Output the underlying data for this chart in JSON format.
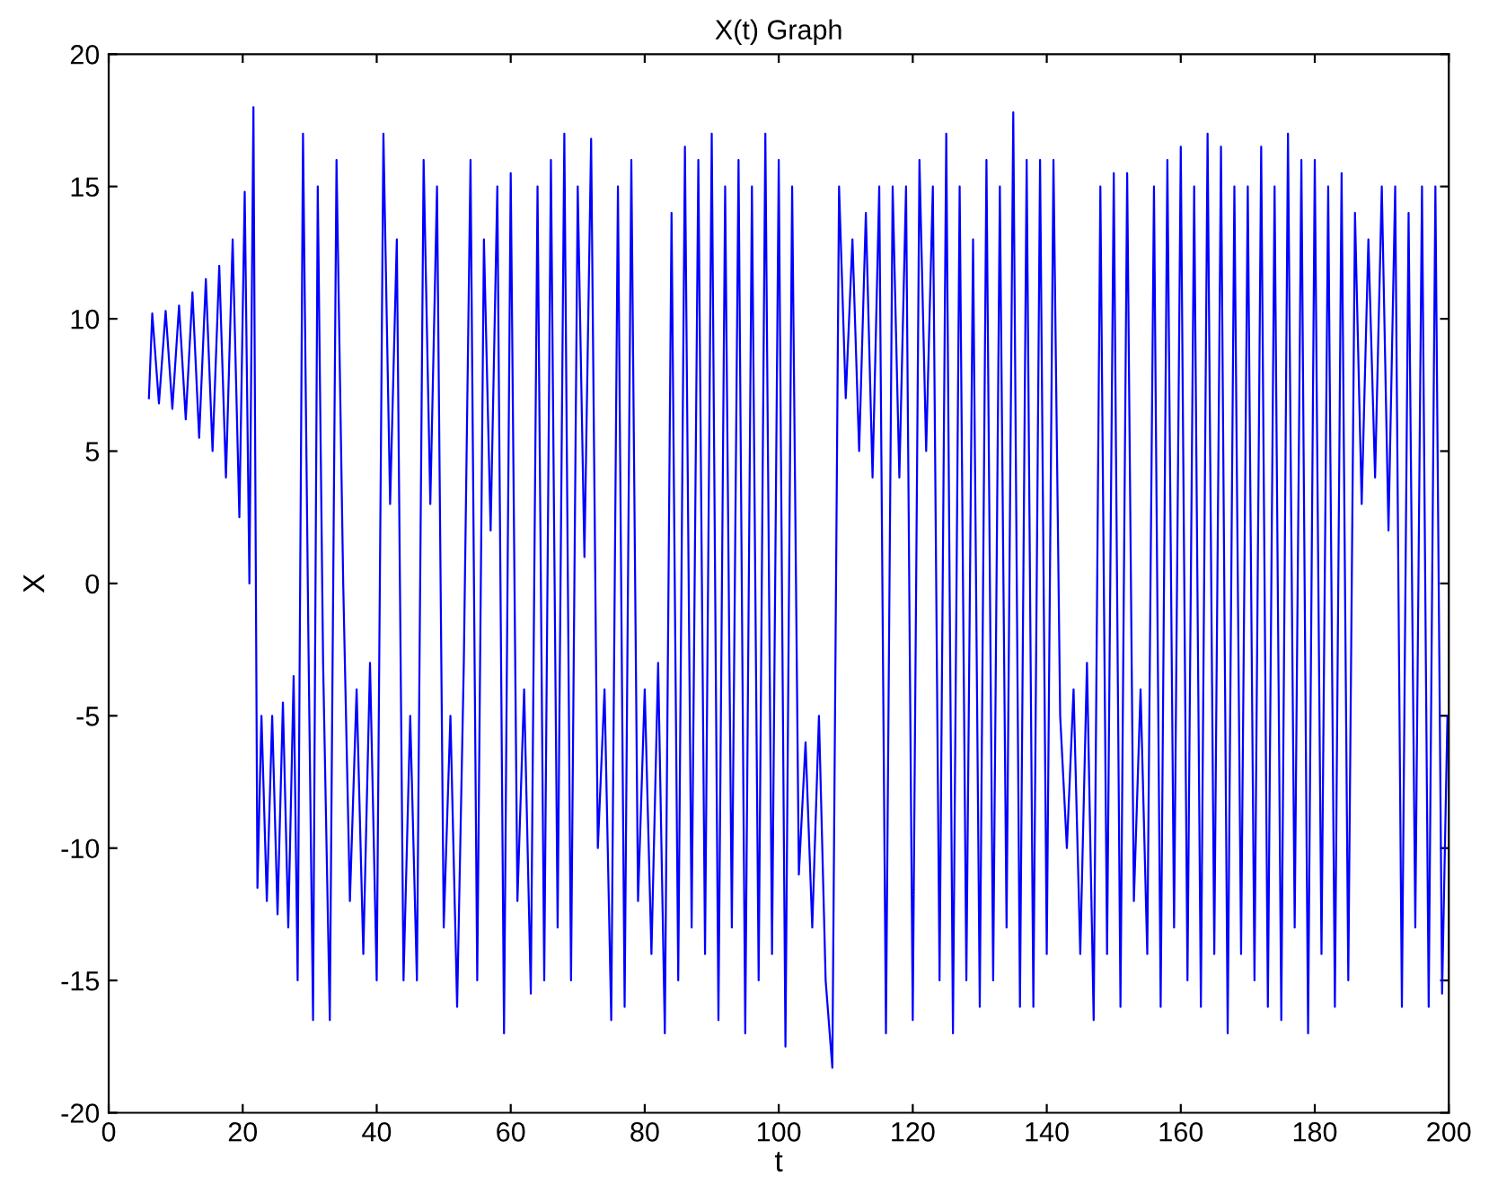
{
  "chart_data": {
    "type": "line",
    "title": "X(t) Graph",
    "xlabel": "t",
    "ylabel": "X",
    "x": [
      6,
      6.5,
      7.5,
      8.5,
      9.5,
      10.5,
      11.5,
      12.5,
      13.5,
      14.5,
      15.5,
      16.5,
      17.5,
      18.5,
      19.5,
      20.3,
      21,
      21.6,
      22.2,
      22.8,
      23.6,
      24.4,
      25.2,
      26,
      26.8,
      27.6,
      28.2,
      29,
      29.8,
      30.5,
      31.2,
      32,
      33,
      34,
      35,
      36,
      37,
      38,
      39,
      40,
      41,
      42,
      43,
      44,
      45,
      46,
      47,
      48,
      49,
      50,
      51,
      52,
      53,
      54,
      55,
      56,
      57,
      58,
      59,
      60,
      61,
      62,
      63,
      64,
      65,
      66,
      67,
      68,
      69,
      70,
      71,
      72,
      73,
      74,
      75,
      76,
      77,
      78,
      79,
      80,
      81,
      82,
      83,
      84,
      85,
      86,
      87,
      88,
      89,
      90,
      91,
      92,
      93,
      94,
      95,
      96,
      97,
      98,
      99,
      100,
      101,
      102,
      103,
      104,
      105,
      106,
      107,
      108,
      109,
      110,
      111,
      112,
      113,
      114,
      115,
      116,
      117,
      118,
      119,
      120,
      121,
      122,
      123,
      124,
      125,
      126,
      127,
      128,
      129,
      130,
      131,
      132,
      133,
      134,
      135,
      136,
      137,
      138,
      139,
      140,
      141,
      142,
      143,
      144,
      145,
      146,
      147,
      148,
      149,
      150,
      151,
      152,
      153,
      154,
      155,
      156,
      157,
      158,
      159,
      160,
      161,
      162,
      163,
      164,
      165,
      166,
      167,
      168,
      169,
      170,
      171,
      172,
      173,
      174,
      175,
      176,
      177,
      178,
      179,
      180,
      181,
      182,
      183,
      184,
      185,
      186,
      187,
      188,
      189,
      190,
      191,
      192,
      193,
      194,
      195,
      196,
      197,
      198,
      199,
      199.8
    ],
    "series": [
      {
        "color": "#0000ff",
        "values": [
          7,
          10.2,
          6.8,
          10.3,
          6.6,
          10.5,
          6.2,
          11,
          5.5,
          11.5,
          5,
          12,
          4,
          13,
          2.5,
          14.8,
          0,
          18,
          -11.5,
          -5,
          -12,
          -5,
          -12.5,
          -4.5,
          -13,
          -3.5,
          -15,
          17,
          -2,
          -16.5,
          15,
          -3,
          -16.5,
          16,
          0,
          -12,
          -4,
          -14,
          -3,
          -15,
          17,
          3,
          13,
          -15,
          -5,
          -15,
          16,
          3,
          15,
          -13,
          -5,
          -16,
          -3,
          16,
          -15,
          13,
          2,
          15,
          -17,
          15.5,
          -12,
          -4,
          -15.5,
          15,
          -15,
          16,
          -13,
          17,
          -15,
          15,
          1,
          16.8,
          -10,
          -4,
          -16.5,
          15,
          -16,
          16,
          -12,
          -4,
          -14,
          -3,
          -17,
          14,
          -15,
          16.5,
          -13,
          16,
          -14,
          17,
          -16.5,
          15,
          -13,
          16,
          -17,
          15,
          -15,
          17,
          -14,
          16,
          -17.5,
          15,
          -11,
          -6,
          -13,
          -5,
          -15,
          -18.3,
          15,
          7,
          13,
          5,
          14,
          4,
          15,
          -17,
          15,
          4,
          15,
          -16.5,
          16,
          5,
          15,
          -15,
          17,
          -17,
          15,
          -15,
          13,
          -16,
          16,
          -15,
          15,
          -13,
          17.8,
          -16,
          16,
          -16,
          16,
          -14,
          16,
          -5,
          -10,
          -4,
          -14,
          -3,
          -16.5,
          15,
          -14,
          15.5,
          -16,
          15.5,
          -12,
          -4,
          -14,
          15,
          -16,
          16,
          -13,
          16.5,
          -15,
          15,
          -16,
          17,
          -14,
          16.5,
          -17,
          15,
          -14,
          15,
          -15,
          16.5,
          -16,
          15,
          -16.5,
          17,
          -13,
          16,
          -17,
          16,
          -14,
          15,
          -16,
          15.5,
          -15,
          14,
          3,
          13,
          4,
          15,
          2,
          15,
          -16,
          14,
          -13,
          15,
          -16,
          15,
          -15.5,
          -5
        ]
      }
    ],
    "xlim": [
      0,
      200
    ],
    "xticks": [
      0,
      20,
      40,
      60,
      80,
      100,
      120,
      140,
      160,
      180,
      200
    ],
    "ylim": [
      -20,
      20
    ],
    "yticks": [
      -20,
      -15,
      -10,
      -5,
      0,
      5,
      10,
      15,
      20
    ],
    "grid": false,
    "legend": false
  }
}
